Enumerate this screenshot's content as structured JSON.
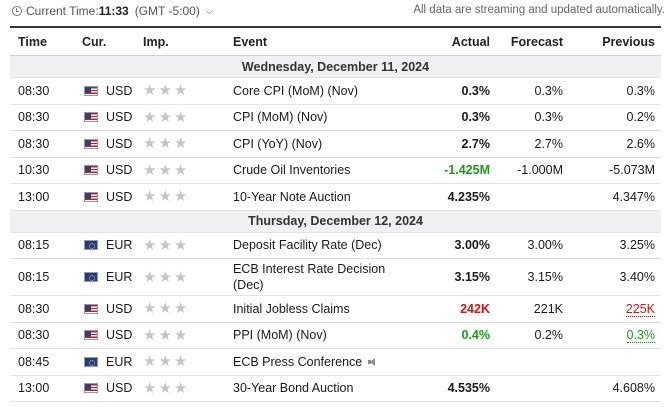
{
  "header": {
    "current_time_label": "Current Time:",
    "current_time": "11:33",
    "timezone": "(GMT -5:00)",
    "streaming_note": "All data are streaming and updated automatically."
  },
  "columns": {
    "time": "Time",
    "currency": "Cur.",
    "importance": "Imp.",
    "event": "Event",
    "actual": "Actual",
    "forecast": "Forecast",
    "previous": "Previous"
  },
  "days": [
    {
      "label": "Wednesday, December 11, 2024",
      "events": [
        {
          "time": "08:30",
          "currency": "USD",
          "flag": "us-flag",
          "stars": 3,
          "event": "Core CPI (MoM) (Nov)",
          "actual": "0.3%",
          "actual_color": "",
          "forecast": "0.3%",
          "previous": "0.3%",
          "previous_color": ""
        },
        {
          "time": "08:30",
          "currency": "USD",
          "flag": "us-flag",
          "stars": 3,
          "event": "CPI (MoM) (Nov)",
          "actual": "0.3%",
          "actual_color": "",
          "forecast": "0.3%",
          "previous": "0.2%",
          "previous_color": ""
        },
        {
          "time": "08:30",
          "currency": "USD",
          "flag": "us-flag",
          "stars": 3,
          "event": "CPI (YoY) (Nov)",
          "actual": "2.7%",
          "actual_color": "",
          "forecast": "2.7%",
          "previous": "2.6%",
          "previous_color": ""
        },
        {
          "time": "10:30",
          "currency": "USD",
          "flag": "us-flag",
          "stars": 3,
          "event": "Crude Oil Inventories",
          "actual": "-1.425M",
          "actual_color": "green",
          "forecast": "-1.000M",
          "previous": "-5.073M",
          "previous_color": ""
        },
        {
          "time": "13:00",
          "currency": "USD",
          "flag": "us-flag",
          "stars": 3,
          "event": "10-Year Note Auction",
          "actual": "4.235%",
          "actual_color": "",
          "forecast": "",
          "previous": "4.347%",
          "previous_color": ""
        }
      ]
    },
    {
      "label": "Thursday, December 12, 2024",
      "events": [
        {
          "time": "08:15",
          "currency": "EUR",
          "flag": "eu-flag",
          "stars": 3,
          "event": "Deposit Facility Rate (Dec)",
          "actual": "3.00%",
          "actual_color": "",
          "forecast": "3.00%",
          "previous": "3.25%",
          "previous_color": ""
        },
        {
          "time": "08:15",
          "currency": "EUR",
          "flag": "eu-flag",
          "stars": 3,
          "event": "ECB Interest Rate Decision (Dec)",
          "actual": "3.15%",
          "actual_color": "",
          "forecast": "3.15%",
          "previous": "3.40%",
          "previous_color": "",
          "tall": true
        },
        {
          "time": "08:30",
          "currency": "USD",
          "flag": "us-flag",
          "stars": 3,
          "event": "Initial Jobless Claims",
          "actual": "242K",
          "actual_color": "red",
          "forecast": "221K",
          "previous": "225K",
          "previous_color": "red"
        },
        {
          "time": "08:30",
          "currency": "USD",
          "flag": "us-flag",
          "stars": 3,
          "event": "PPI (MoM) (Nov)",
          "actual": "0.4%",
          "actual_color": "green",
          "forecast": "0.2%",
          "previous": "0.3%",
          "previous_color": "green"
        },
        {
          "time": "08:45",
          "currency": "EUR",
          "flag": "eu-flag",
          "stars": 3,
          "event": "ECB Press Conference",
          "speaker_icon": "speaker-icon",
          "actual": "",
          "actual_color": "",
          "forecast": "",
          "previous": "",
          "previous_color": ""
        },
        {
          "time": "13:00",
          "currency": "USD",
          "flag": "us-flag",
          "stars": 3,
          "event": "30-Year Bond Auction",
          "actual": "4.535%",
          "actual_color": "",
          "forecast": "",
          "previous": "4.608%",
          "previous_color": ""
        }
      ]
    }
  ],
  "colors": {
    "positive": "#1a9c1a",
    "negative": "#dd1111",
    "day_header_bg": "#eef0f2",
    "star_inactive": "#c4c4c4"
  }
}
